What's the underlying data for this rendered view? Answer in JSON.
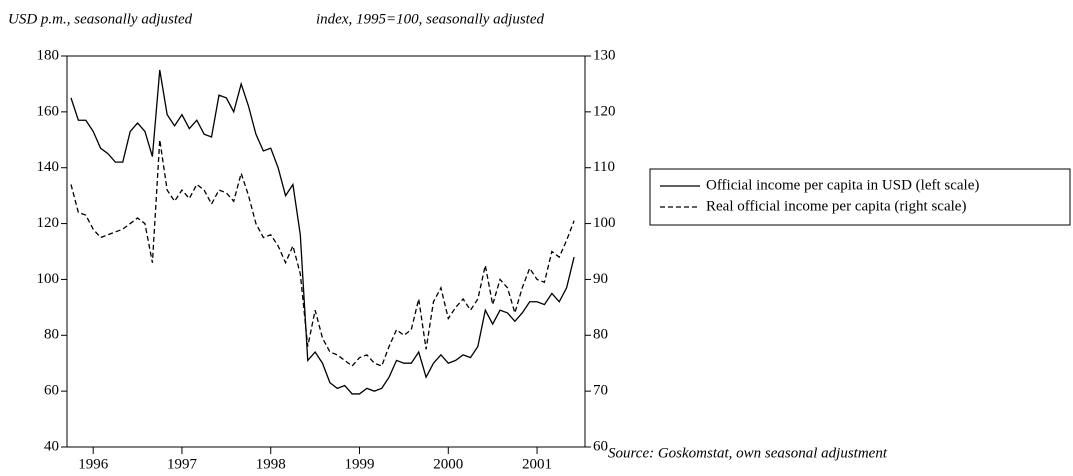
{
  "chart_data": {
    "type": "line",
    "y_label": "USD p.m., seasonally adjusted",
    "y2_label": "index, 1995=100, seasonally adjusted",
    "source": "Source: Goskomstat, own seasonal adjustment",
    "x": [
      1995.75,
      1995.833,
      1995.917,
      1996,
      1996.083,
      1996.167,
      1996.25,
      1996.333,
      1996.417,
      1996.5,
      1996.583,
      1996.667,
      1996.75,
      1996.833,
      1996.917,
      1997,
      1997.083,
      1997.167,
      1997.25,
      1997.333,
      1997.417,
      1997.5,
      1997.583,
      1997.667,
      1997.75,
      1997.833,
      1997.917,
      1998,
      1998.083,
      1998.167,
      1998.25,
      1998.333,
      1998.417,
      1998.5,
      1998.583,
      1998.667,
      1998.75,
      1998.833,
      1998.917,
      1999,
      1999.083,
      1999.167,
      1999.25,
      1999.333,
      1999.417,
      1999.5,
      1999.583,
      1999.667,
      1999.75,
      1999.833,
      1999.917,
      2000,
      2000.083,
      2000.167,
      2000.25,
      2000.333,
      2000.417,
      2000.5,
      2000.583,
      2000.667,
      2000.75,
      2000.833,
      2000.917,
      2001,
      2001.083,
      2001.167,
      2001.25,
      2001.333,
      2001.417
    ],
    "series": [
      {
        "name": "Official income per capita in USD (left scale)",
        "color": "#000000",
        "style": "solid",
        "axis": "y",
        "values": [
          165,
          157,
          157,
          153,
          147,
          145,
          142,
          142,
          153,
          156,
          153,
          144,
          175,
          159,
          155,
          159,
          154,
          157,
          152,
          151,
          166,
          165,
          160,
          170,
          162,
          152,
          146,
          147,
          140,
          130,
          134,
          116,
          71,
          74,
          70,
          63,
          61,
          62,
          59,
          59,
          61,
          60,
          61,
          65,
          71,
          70,
          70,
          74,
          65,
          70,
          73,
          70,
          71,
          73,
          72,
          76,
          89,
          84,
          89,
          88,
          85,
          88,
          92,
          92,
          91,
          95,
          92,
          97,
          108
        ]
      },
      {
        "name": "Real official income per capita (right scale)",
        "color": "#000000",
        "style": "dashed",
        "axis": "y2",
        "values": [
          107,
          102,
          101.5,
          99,
          97.5,
          98,
          98.5,
          99,
          100,
          101,
          100,
          93,
          115,
          106,
          104,
          106,
          104.5,
          107,
          106,
          103.5,
          106,
          105.5,
          104,
          109,
          105,
          100,
          97.5,
          98,
          96,
          93,
          96,
          91,
          78,
          84.5,
          79.5,
          77,
          76.5,
          75.5,
          74.5,
          76,
          76.5,
          75,
          74.5,
          78,
          81,
          80,
          81,
          86.5,
          77.5,
          86,
          88.5,
          83,
          85,
          86.5,
          84.5,
          86.5,
          92.5,
          85.5,
          90,
          88.5,
          84,
          88.5,
          92,
          90,
          89.5,
          95,
          94,
          97,
          100.5
        ]
      }
    ],
    "xlim": [
      1995.705,
      2001.54
    ],
    "xticks": [
      1996,
      1997,
      1998,
      1999,
      2000,
      2001
    ],
    "ylim": [
      40,
      180
    ],
    "yticks": [
      40,
      60,
      80,
      100,
      120,
      140,
      160,
      180
    ],
    "y2lim": [
      60,
      130
    ],
    "y2ticks": [
      60,
      70,
      80,
      90,
      100,
      110,
      120,
      130
    ],
    "legend": "right"
  }
}
